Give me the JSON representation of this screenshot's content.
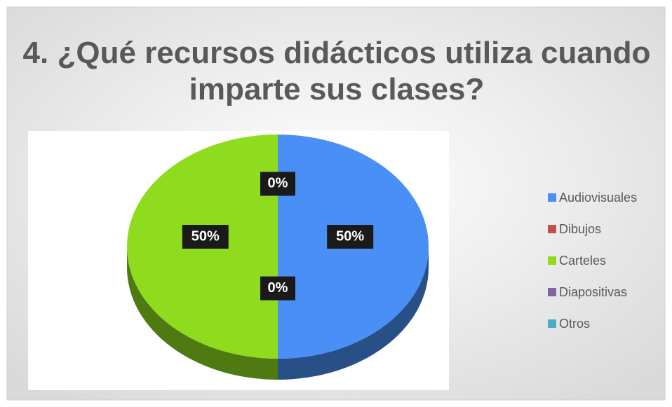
{
  "chart_data": {
    "type": "pie",
    "title": "4. ¿Qué recursos didácticos utiliza cuando imparte sus clases?",
    "categories": [
      "Audiovisuales",
      "Dibujos",
      "Carteles",
      "Diapositivas",
      "Otros"
    ],
    "values": [
      50,
      0,
      50,
      0,
      0
    ],
    "value_labels": [
      "50%",
      "0%",
      "50%",
      "0%",
      "0%"
    ],
    "colors": [
      "#4a8ff5",
      "#c0504d",
      "#8fdc1e",
      "#8064a2",
      "#4bacc6"
    ],
    "legend": "right"
  }
}
